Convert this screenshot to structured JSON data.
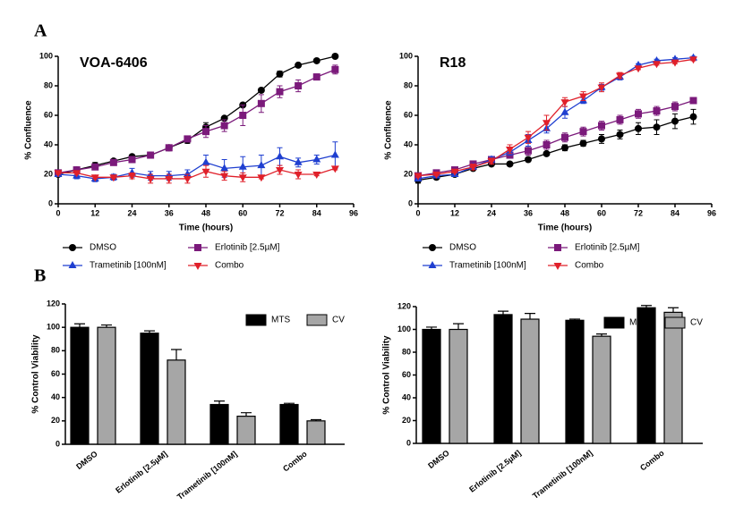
{
  "panel_labels": [
    "A",
    "B"
  ],
  "chart_data": [
    {
      "type": "line",
      "title": "VOA-6406",
      "x_label": "Time (hours)",
      "y_label": "% Confluence",
      "x": [
        0,
        6,
        12,
        18,
        24,
        30,
        36,
        42,
        48,
        54,
        60,
        66,
        72,
        78,
        84,
        90
      ],
      "xlim": [
        0,
        96
      ],
      "xticks": [
        0,
        12,
        24,
        36,
        48,
        60,
        72,
        84,
        96
      ],
      "ylim": [
        0,
        100
      ],
      "yticks": [
        0,
        20,
        40,
        60,
        80,
        100
      ],
      "legend": "bottom",
      "series": [
        {
          "name": "DMSO",
          "color": "#000000",
          "marker": "circle",
          "values": [
            20,
            23,
            26,
            29,
            32,
            33,
            38,
            43,
            52,
            58,
            67,
            77,
            88,
            94,
            97,
            100
          ],
          "errors": [
            1,
            1,
            2,
            1,
            1,
            1,
            2,
            2,
            3,
            1,
            1,
            1,
            2,
            1,
            1,
            1
          ]
        },
        {
          "name": "Erlotinib [2.5µM]",
          "color": "#7b1a7b",
          "marker": "square",
          "values": [
            21,
            23,
            25,
            28,
            30,
            33,
            38,
            44,
            49,
            53,
            60,
            68,
            76,
            80,
            86,
            91
          ],
          "errors": [
            1,
            1,
            1,
            1,
            1,
            2,
            2,
            2,
            4,
            4,
            7,
            6,
            4,
            4,
            2,
            3
          ]
        },
        {
          "name": "Trametinib [100nM]",
          "color": "#1f3fd0",
          "marker": "triangle-up",
          "values": [
            20,
            19,
            17,
            18,
            21,
            19,
            19,
            20,
            28,
            24,
            25,
            26,
            32,
            28,
            30,
            33
          ],
          "errors": [
            1,
            2,
            2,
            2,
            3,
            3,
            3,
            3,
            5,
            6,
            7,
            7,
            6,
            3,
            3,
            9
          ]
        },
        {
          "name": "Combo",
          "color": "#e0202a",
          "marker": "triangle-down",
          "values": [
            21,
            21,
            18,
            18,
            19,
            17,
            17,
            17,
            22,
            19,
            18,
            18,
            23,
            20,
            20,
            24
          ],
          "errors": [
            1,
            1,
            1,
            1,
            2,
            3,
            3,
            3,
            4,
            3,
            3,
            1,
            3,
            3,
            1,
            1
          ]
        }
      ]
    },
    {
      "type": "line",
      "title": "R18",
      "x_label": "Time (hours)",
      "y_label": "% Confluence",
      "x": [
        0,
        6,
        12,
        18,
        24,
        30,
        36,
        42,
        48,
        54,
        60,
        66,
        72,
        78,
        84,
        90
      ],
      "xlim": [
        0,
        96
      ],
      "xticks": [
        0,
        12,
        24,
        36,
        48,
        60,
        72,
        84,
        96
      ],
      "ylim": [
        0,
        100
      ],
      "yticks": [
        0,
        20,
        40,
        60,
        80,
        100
      ],
      "legend": "bottom",
      "series": [
        {
          "name": "DMSO",
          "color": "#000000",
          "marker": "circle",
          "values": [
            16,
            18,
            20,
            24,
            27,
            27,
            30,
            34,
            38,
            41,
            44,
            47,
            51,
            52,
            56,
            59
          ],
          "errors": [
            2,
            1,
            1,
            1,
            1,
            1,
            1,
            1,
            2,
            2,
            3,
            3,
            4,
            5,
            5,
            5
          ]
        },
        {
          "name": "Erlotinib [2.5µM]",
          "color": "#7b1a7b",
          "marker": "square",
          "values": [
            19,
            21,
            23,
            27,
            30,
            33,
            36,
            40,
            45,
            49,
            53,
            57,
            61,
            63,
            66,
            70
          ],
          "errors": [
            1,
            1,
            1,
            2,
            2,
            2,
            3,
            3,
            3,
            3,
            3,
            3,
            3,
            3,
            3,
            2
          ]
        },
        {
          "name": "Trametinib [100nM]",
          "color": "#1f3fd0",
          "marker": "triangle-up",
          "values": [
            17,
            19,
            20,
            25,
            30,
            35,
            43,
            51,
            62,
            70,
            79,
            86,
            94,
            97,
            98,
            99
          ],
          "errors": [
            1,
            1,
            1,
            2,
            2,
            2,
            4,
            3,
            4,
            2,
            2,
            2,
            1,
            1,
            1,
            1
          ]
        },
        {
          "name": "Combo",
          "color": "#e0202a",
          "marker": "triangle-down",
          "values": [
            19,
            20,
            22,
            25,
            29,
            37,
            45,
            55,
            69,
            73,
            79,
            87,
            92,
            95,
            96,
            98
          ],
          "errors": [
            1,
            1,
            1,
            2,
            2,
            3,
            4,
            5,
            3,
            3,
            3,
            2,
            1,
            1,
            1,
            1
          ]
        }
      ]
    },
    {
      "type": "bar",
      "y_label": "% Control Viability",
      "categories": [
        "DMSO",
        "Erlotinib [2.5µM]",
        "Trametinib [100nM]",
        "Combo"
      ],
      "ylim": [
        0,
        120
      ],
      "yticks": [
        0,
        20,
        40,
        60,
        80,
        100,
        120
      ],
      "legend": "top-right",
      "series": [
        {
          "name": "MTS",
          "color": "#000000",
          "values": [
            100,
            95,
            34,
            34
          ],
          "errors": [
            3,
            2,
            3,
            1
          ]
        },
        {
          "name": "CV",
          "color": "#a6a6a6",
          "values": [
            100,
            72,
            24,
            20
          ],
          "errors": [
            2,
            9,
            3,
            1
          ]
        }
      ]
    },
    {
      "type": "bar",
      "y_label": "% Control Viability",
      "categories": [
        "DMSO",
        "Erlotinib [2.5µM]",
        "Trametinib [100nM]",
        "Combo"
      ],
      "ylim": [
        0,
        120
      ],
      "yticks": [
        0,
        20,
        40,
        60,
        80,
        100,
        120
      ],
      "legend": "top-right",
      "series": [
        {
          "name": "MTS",
          "color": "#000000",
          "values": [
            100,
            113,
            108,
            119
          ],
          "errors": [
            2,
            3,
            1,
            2
          ]
        },
        {
          "name": "CV",
          "color": "#a6a6a6",
          "values": [
            100,
            109,
            94,
            115
          ],
          "errors": [
            5,
            5,
            2,
            4
          ]
        }
      ]
    }
  ]
}
